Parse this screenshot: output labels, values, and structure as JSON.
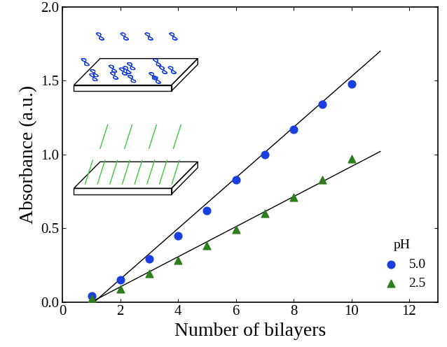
{
  "chart_data": {
    "type": "scatter",
    "x_label": "Number of bilayers",
    "y_label": "Absorbance (a.u.)",
    "legend_title": "pH",
    "legend": "lower right",
    "xlim": [
      0,
      13
    ],
    "xticks": [
      0,
      2,
      4,
      6,
      8,
      10,
      12
    ],
    "ylim": [
      0,
      2.0
    ],
    "yticks": [
      {
        "value": 0,
        "label": "0.0"
      },
      0.5,
      {
        "value": 1,
        "label": "1.0"
      },
      1.5,
      {
        "value": 2,
        "label": "2.0"
      }
    ],
    "x": [
      1,
      2,
      3,
      4,
      5,
      6,
      7,
      8,
      9,
      10
    ],
    "series": [
      {
        "name": "5.0",
        "color": "#1a3fe0",
        "marker": "circle",
        "values": [
          0.04,
          0.15,
          0.29,
          0.45,
          0.62,
          0.83,
          1.0,
          1.17,
          1.34,
          1.48
        ],
        "fit": {
          "x": [
            1.1,
            11
          ],
          "values": [
            0.0,
            1.7
          ],
          "color": "#000000"
        }
      },
      {
        "name": "2.5",
        "color": "#2e7d1e",
        "marker": "triangle",
        "values": [
          0.02,
          0.09,
          0.19,
          0.28,
          0.38,
          0.49,
          0.6,
          0.71,
          0.83,
          0.97
        ],
        "fit": {
          "x": [
            1.0,
            11
          ],
          "values": [
            0.0,
            1.02
          ],
          "color": "#000000"
        }
      }
    ]
  }
}
